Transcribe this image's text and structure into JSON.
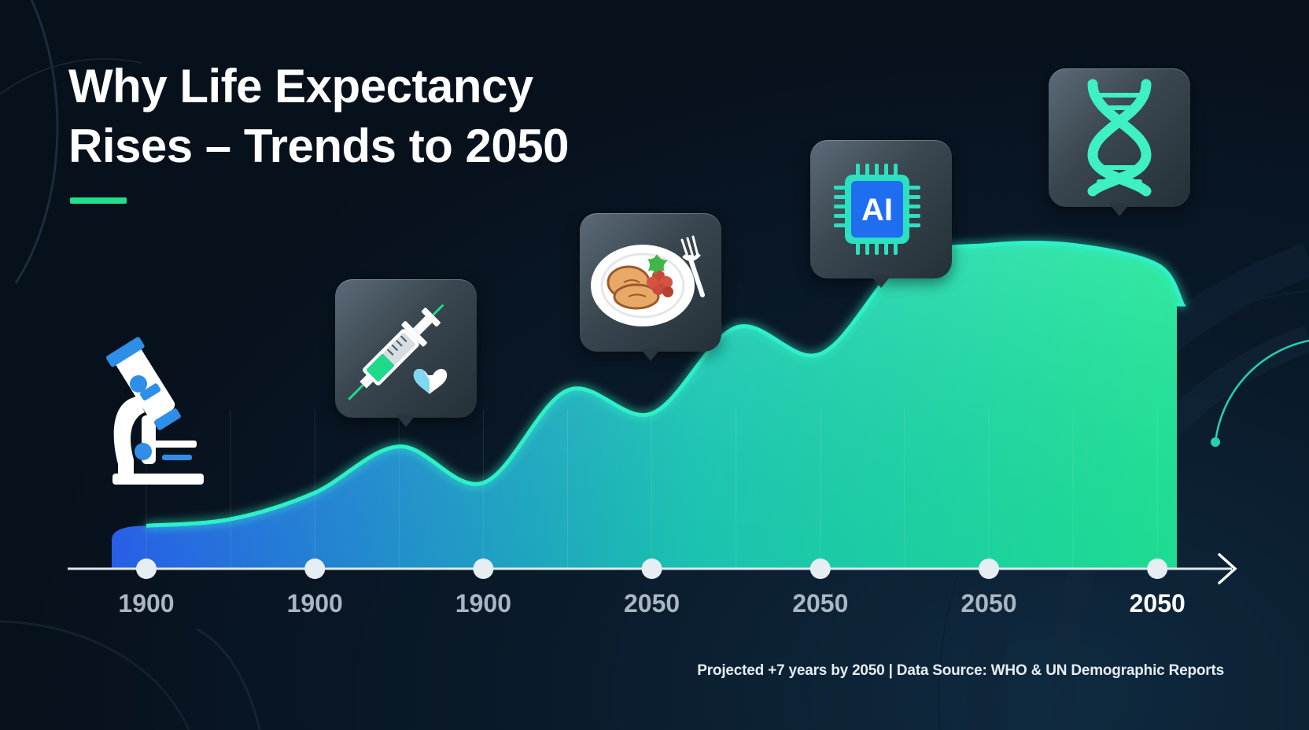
{
  "title_lines": [
    "Why Life Expectancy",
    "Rises – Trends to 2050"
  ],
  "footer": "Projected +7 years by 2050 | Data Source: WHO & UN Demographic Reports",
  "colors": {
    "accent": "#1fe08c",
    "gradient_start": "#2a63f2",
    "gradient_end": "#1fe898",
    "line_glow": "#2ef0c8",
    "background": "#07111c"
  },
  "icons": [
    "microscope-icon",
    "syringe-heart-icon",
    "food-plate-icon",
    "ai-chip-icon",
    "dna-icon"
  ],
  "callouts": [
    {
      "name": "syringe-heart-icon"
    },
    {
      "name": "food-plate-icon"
    },
    {
      "name": "ai-chip-icon",
      "text": "AI"
    },
    {
      "name": "dna-icon"
    }
  ],
  "chart_data": {
    "type": "area",
    "title": "Why Life Expectancy Rises – Trends to 2050",
    "xlabel": "",
    "ylabel": "",
    "x_tick_labels": [
      "1900",
      "1900",
      "1900",
      "2050",
      "2050",
      "2050",
      "2050"
    ],
    "highlight_tick_index": 6,
    "y_axis_shown": false,
    "ylim": [
      0,
      100
    ],
    "grid": false,
    "legend": "none",
    "series": [
      {
        "x": [
          0,
          0.5,
          1,
          1.5,
          2,
          2.5,
          3,
          3.5,
          4,
          4.5,
          5,
          5.5,
          6,
          6.15
        ],
        "values": [
          13,
          15,
          23,
          37,
          26,
          54,
          47,
          73,
          65,
          93,
          98,
          98,
          92,
          80
        ]
      }
    ]
  }
}
